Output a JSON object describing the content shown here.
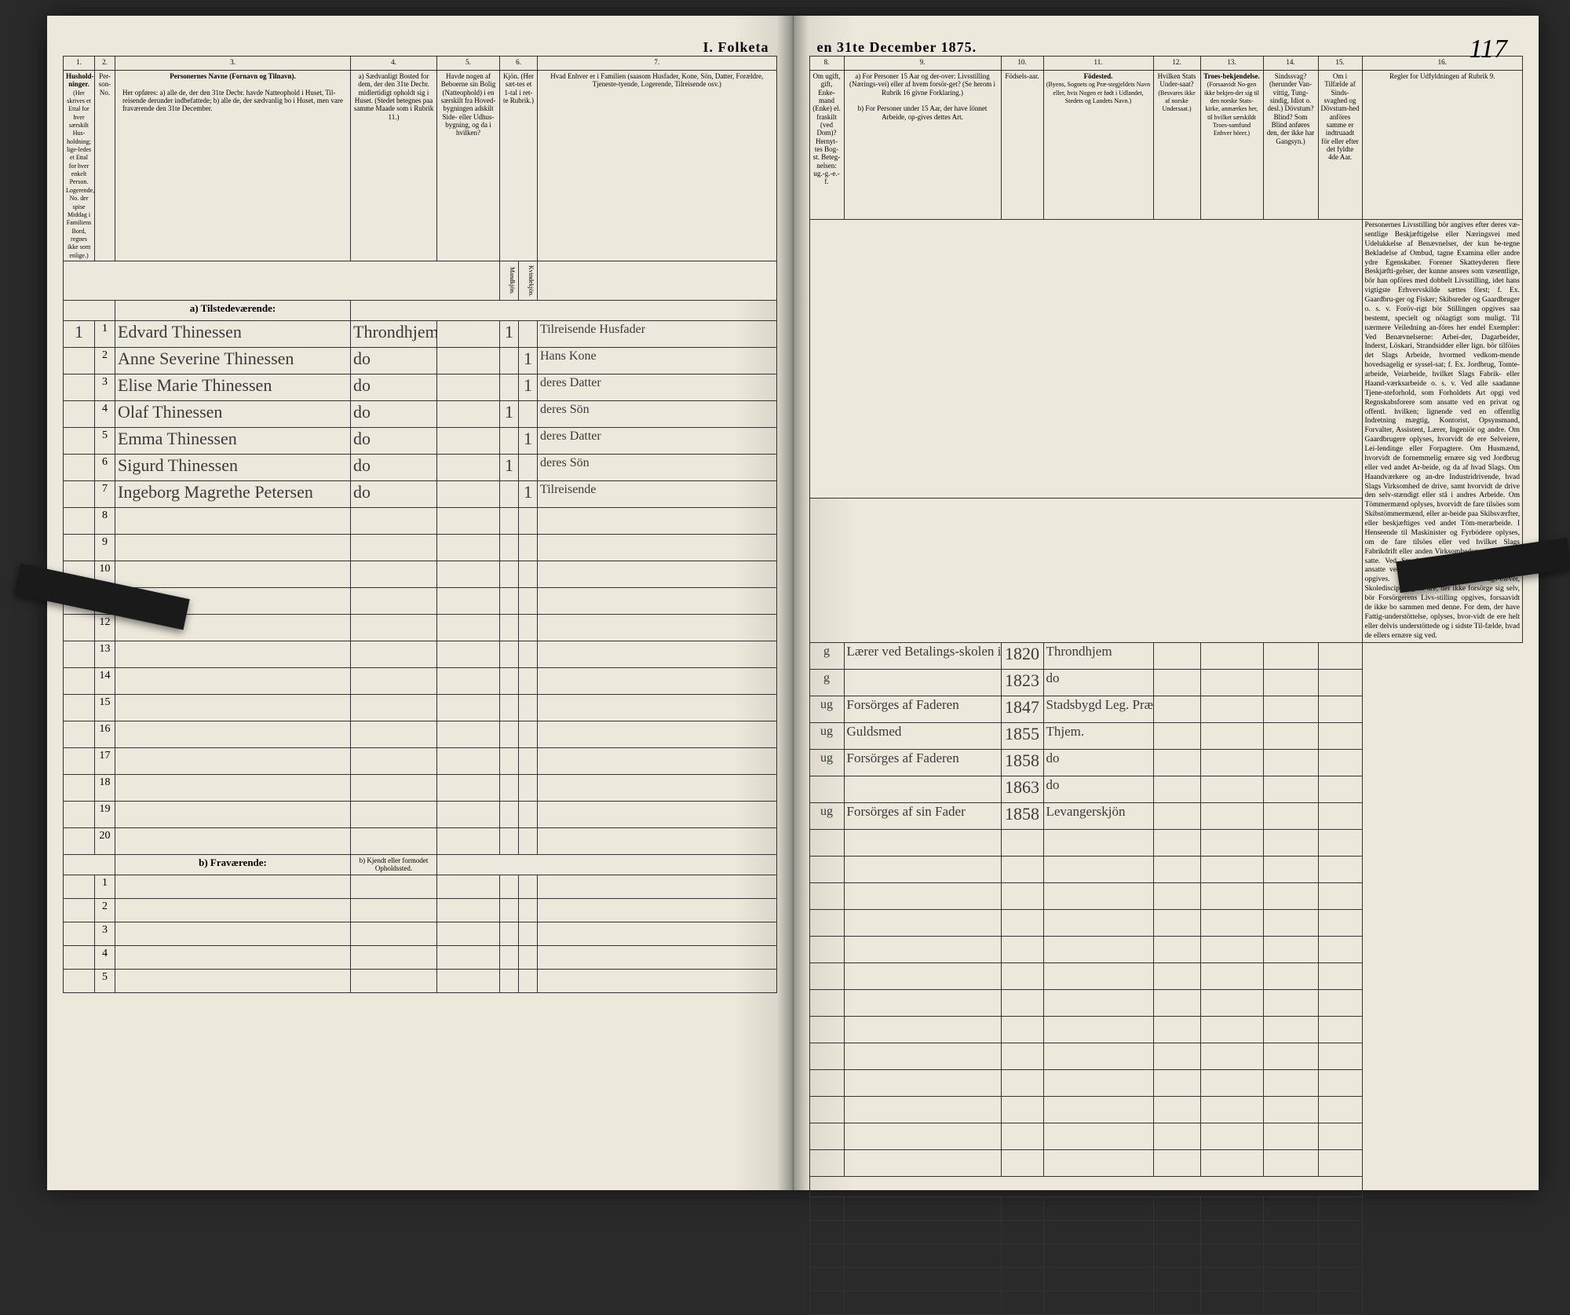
{
  "header": {
    "title_left": "I. Folketa",
    "title_right": "en 31te December 1875.",
    "page_number": "117"
  },
  "columns_left": {
    "c1": "1.",
    "c2": "2.",
    "c3": "3.",
    "c4": "4.",
    "c5": "5.",
    "c6": "6.",
    "c7": "7.",
    "h1": "Hushold-ninger.",
    "h1_sub": "(Her skrives et Ettal for hver særskilt Hus-holdning; lige-ledes et Ettal for hver enkelt Person. Logerende, No. der spise Middag i Familiens Bord, regnes ikke som enlige.)",
    "h2": "Per-son-No.",
    "h3": "Personernes Navne (Fornavn og Tilnavn).",
    "h3_sub_a": "Her opføres:\na) alle de, der den 31te Decbr. havde Natteophold i Huset, Til-reisende derunder indbefattede;\nb) alle de, der sædvanlig bo i Huset, men vare fraværende den 31te December.",
    "h4": "a) Sædvanligt Bosted for dem, der den 31te Decbr. midlertidigt opholdt sig i Huset. (Stedet betegnes paa samme Maade som i Rubrik 11.)",
    "h5": "Havde nogen af Beboerne sin Bolig (Natteophold) i en særskilt fra Hoved-bygningen adskilt Side- eller Udhus-bygning, og da i hvilken?",
    "h6": "Kjön. (Her sæt-tes et 1-tal i ret-te Rubrik.)",
    "h6m": "Mandkjön.",
    "h6k": "Kvindekjön.",
    "h7": "Hvad Enhver er i Familien (saasom Husfader, Kone, Sön, Datter, Forældre, Tjeneste-tyende, Logerende, Tilreisende osv.)"
  },
  "columns_right": {
    "c8": "8.",
    "c9": "9.",
    "c10": "10.",
    "c11": "11.",
    "c12": "12.",
    "c13": "13.",
    "c14": "14.",
    "c15": "15.",
    "c16": "16.",
    "h8": "Om ugift, gift, Enke-mand (Enke) el. fraskilt (ved Dom)? Hernyt-tes Bog-st. Beteg-nelsen: ug.-g.-e.-f.",
    "h9a": "a) For Personer 15 Aar og der-over: Livsstilling (Nærings-vei) eller af hvem forsör-get? (Se herom i Rubrik 16 givne Forklaring.)",
    "h9b": "b) For Personer under 15 Aar, der have lönnet Arbeide, op-gives dettes Art.",
    "h10": "Födsels-aar.",
    "h11": "Födested.",
    "h11_sub": "(Byens, Sognets og Præ-stegjeldets Navn eller, hvis Nogen er født i Udlandet, Stedets og Landets Navn.)",
    "h12": "Hvilken Stats Under-saat?",
    "h12_sub": "(Besvares ikke af norske Undersaat.)",
    "h13": "Troes-bekjendelse.",
    "h13_sub": "(Forsaavidt No-gen ikke bekjen-der sig til den norske Stats-kirke, anmærkes her, til hvilket særskildt Troes-samfund Enhver hörer.)",
    "h14": "Sindssvag? (herunder Van-vittig, Tung-sindig, Idiot o. desl.) Dövstum? Blind? Som Blind anføres den, der ikke har Gangsyn.)",
    "h15": "Om i Tilfælde af Sinds-svaghed og Dövstum-hed anföres samme er indtruaadt för eller efter det fyldte 4de Aar.",
    "h16": "Regler for Udfyldningen af Rubrik 9."
  },
  "section_a": "a) Tilstedeværende:",
  "section_b": "b) Fraværende:",
  "section_b_col4": "b) Kjendt eller formodet Opholdssted.",
  "rows": [
    {
      "hh": "1",
      "no": "1",
      "name": "Edvard Thinessen",
      "res": "Throndhjem",
      "male": "1",
      "fem": "",
      "rel": "Tilreisende Husfader",
      "mar": "g",
      "occ": "Lærer ved Betalings-skolen i Thjem",
      "year": "1820",
      "place": "Throndhjem"
    },
    {
      "hh": "",
      "no": "2",
      "name": "Anne Severine Thinessen",
      "res": "do",
      "male": "",
      "fem": "1",
      "rel": "Hans Kone",
      "mar": "g",
      "occ": "",
      "year": "1823",
      "place": "do"
    },
    {
      "hh": "",
      "no": "3",
      "name": "Elise Marie Thinessen",
      "res": "do",
      "male": "",
      "fem": "1",
      "rel": "deres Datter",
      "mar": "ug",
      "occ": "Forsörges af Faderen",
      "year": "1847",
      "place": "Stadsbygd Leg. Præg."
    },
    {
      "hh": "",
      "no": "4",
      "name": "Olaf Thinessen",
      "res": "do",
      "male": "1",
      "fem": "",
      "rel": "deres Sön",
      "mar": "ug",
      "occ": "Guldsmed",
      "year": "1855",
      "place": "Thjem."
    },
    {
      "hh": "",
      "no": "5",
      "name": "Emma Thinessen",
      "res": "do",
      "male": "",
      "fem": "1",
      "rel": "deres Datter",
      "mar": "ug",
      "occ": "Forsörges af Faderen",
      "year": "1858",
      "place": "do"
    },
    {
      "hh": "",
      "no": "6",
      "name": "Sigurd Thinessen",
      "res": "do",
      "male": "1",
      "fem": "",
      "rel": "deres Sön",
      "mar": "",
      "occ": "",
      "year": "1863",
      "place": "do"
    },
    {
      "hh": "",
      "no": "7",
      "name": "Ingeborg Magrethe Petersen",
      "res": "do",
      "male": "",
      "fem": "1",
      "rel": "Tilreisende",
      "mar": "ug",
      "occ": "Forsörges af sin Fader",
      "year": "1858",
      "place": "Levangerskjön"
    }
  ],
  "rules_text": "Personernes Livsstilling bör angives efter deres væ-sentlige Beskjæftigelse eller Næringsvei med Udelukkelse af Benævnelser, der kun be-tegne Bekladelse af Ombud, tagne Examina eller andre ydre Egenskaber. Forener Skatteyderen flere Beskjæfti-gelser, der kunne ansees som væsentlige, bör han opföres med dobbelt Livsstilling, idet hans vigtigste Erhvervskilde sættes först; f. Ex. Gaardbru-ger og Fisker; Skibsreder og Gaardbruger o. s. v. Foröv-rigt bör Stillingen opgives saa bestemt, specielt og nöiagtigt som muligt.\n\nTil nærmere Veiledning an-föres her endel Exempler:\nVed Benævnelserne: Arbei-der, Dagarbeider, Inderst, Löskari, Strandsidder eller lign. bör tilföies det Slags Arbeide, hvormed vedkom-mende hovedsagelig er syssel-sat; f. Ex. Jordbrug, Tomte-arbeide, Veiarbeide, hvilket Slags Fabrik- eller Haand-værksarbeide o. s. v.\n\nVed alle saadanne Tjene-steforhold, som Forholdets Art opgi ved Regnskabsforere som ansatte ved en privat og offentl. hvilken; lignende ved en offentlig Indretning mægtig, Kontorist, Opsynsmand, Forvalter, Assistent, Lærer, Ingeniör og andre.\n\nOm Gaardbrugere oplyses, hvorvidt de ere Selveiere, Lei-lendinge eller Forpagtere.\n\nOm Husmænd, hvorvidt de fornemmelig ernære sig ved Jordbrug eller ved andet Ar-beide, og da af hvad Slags.\n\nOm Haandværkere og an-dre Industridrivende, hvad Slags Virksomhed de drive, samt hvorvidt de drive den selv-stændigt eller stå i andres Arbeide.\n\nOm Tömmermænd oplyses, hvorvidt de fare tilsöes som Skibstömmermænd, eller ar-beide paa Skibsværfter, eller beskjæftiges ved andet Töm-merarbeide.\n\nI Henseende til Maskinister og Fyrbödere oplyses, om de fare tilsöes eller ved hvilket Slags Fabrikdrift eller anden Virksomhedsgren de ere an-satte.\n\nVed Smede, Snedkere og andre, der ere ansatte ved Fa-briker og Brug, bör dettes Navn opgives.\n\nFor Studenter, Landbrugs-elever, Skoledisciple og an-dre, der ikke forsörge sig selv, bör Forsörgerens Livs-stilling opgives, forsaavidt de ikke bo sammen med denne.\n\nFor dem, der have Fattig-understöttelse, oplyses, hvor-vidt de ere helt eller delvis understöttede og i sidste Til-fælde, hvad de ellers ernære sig ved.",
  "colors": {
    "paper": "#ece8dc",
    "ink": "#222222",
    "handwriting": "#3a3a3a",
    "border": "#333333"
  }
}
